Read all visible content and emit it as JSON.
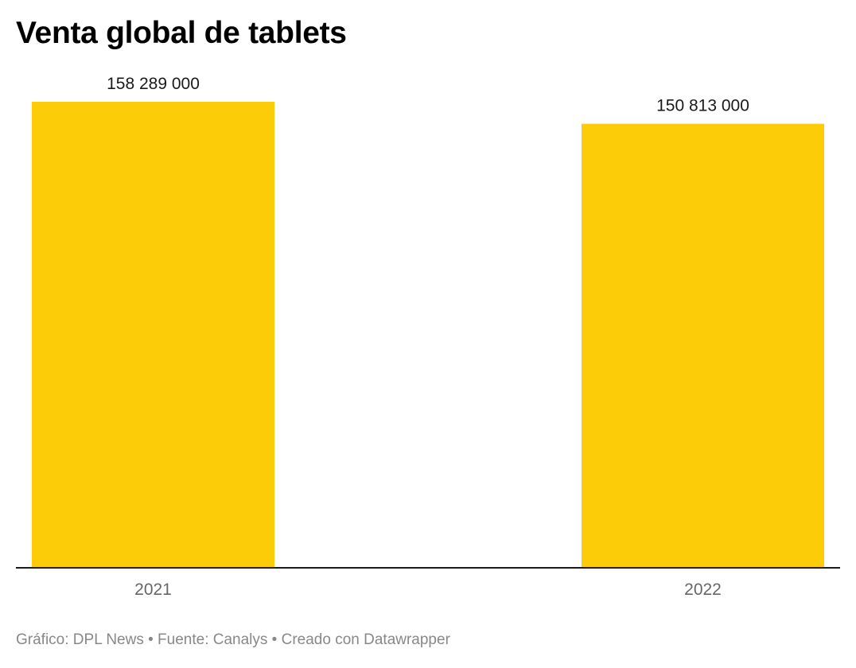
{
  "chart_data": {
    "type": "bar",
    "title": "Venta global de tablets",
    "categories": [
      "2021",
      "2022"
    ],
    "values": [
      158289000,
      150813000
    ],
    "value_labels": [
      "158 289 000",
      "150 813 000"
    ],
    "xlabel": "",
    "ylabel": "",
    "ylim": [
      0,
      158289000
    ],
    "grid": false,
    "legend": "none",
    "bar_color": "#fdcc09",
    "axis_color": "#1a1a1a",
    "value_label_color": "#1a1a1a",
    "tick_label_color": "#666666"
  },
  "footer": {
    "text": "Gráfico: DPL News • Fuente: Canalys • Creado con Datawrapper"
  }
}
